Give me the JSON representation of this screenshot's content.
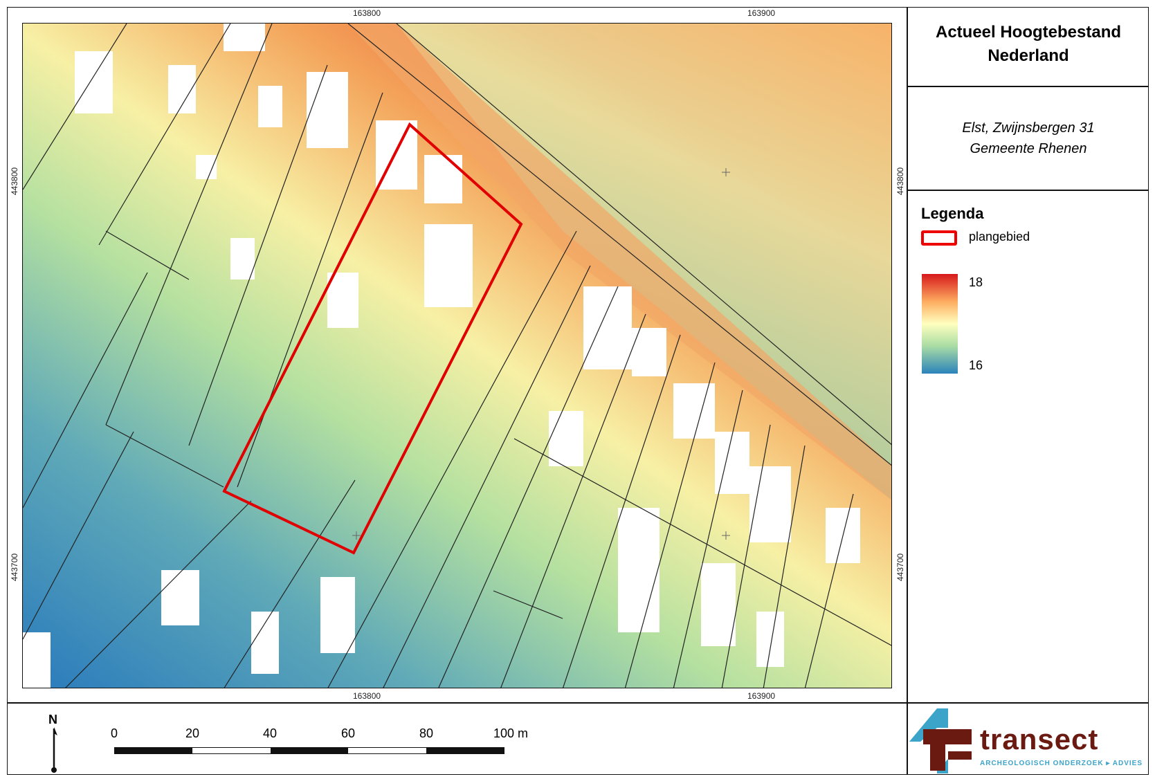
{
  "title": "Actueel Hoogtebestand Nederland",
  "subtitle": {
    "line1": "Elst, Zwijnsbergen 31",
    "line2": "Gemeente Rhenen"
  },
  "legend": {
    "title": "Legenda",
    "area_label": "plangebied",
    "ramp_max": "18",
    "ramp_min": "16",
    "area_color": "#e00000"
  },
  "coordinates": {
    "x1": "163800",
    "x2": "163900",
    "y1": "443800",
    "y2": "443700"
  },
  "scalebar": {
    "labels": [
      "0",
      "20",
      "40",
      "60",
      "80",
      "100 m"
    ]
  },
  "north_label": "N",
  "logo": {
    "name": "transect",
    "tagline": "ARCHEOLOGISCH ONDERZOEK ▸ ADVIES"
  },
  "colors": {
    "high": "#d7191c",
    "mid": "#ffffbf",
    "low": "#2b83ba"
  }
}
